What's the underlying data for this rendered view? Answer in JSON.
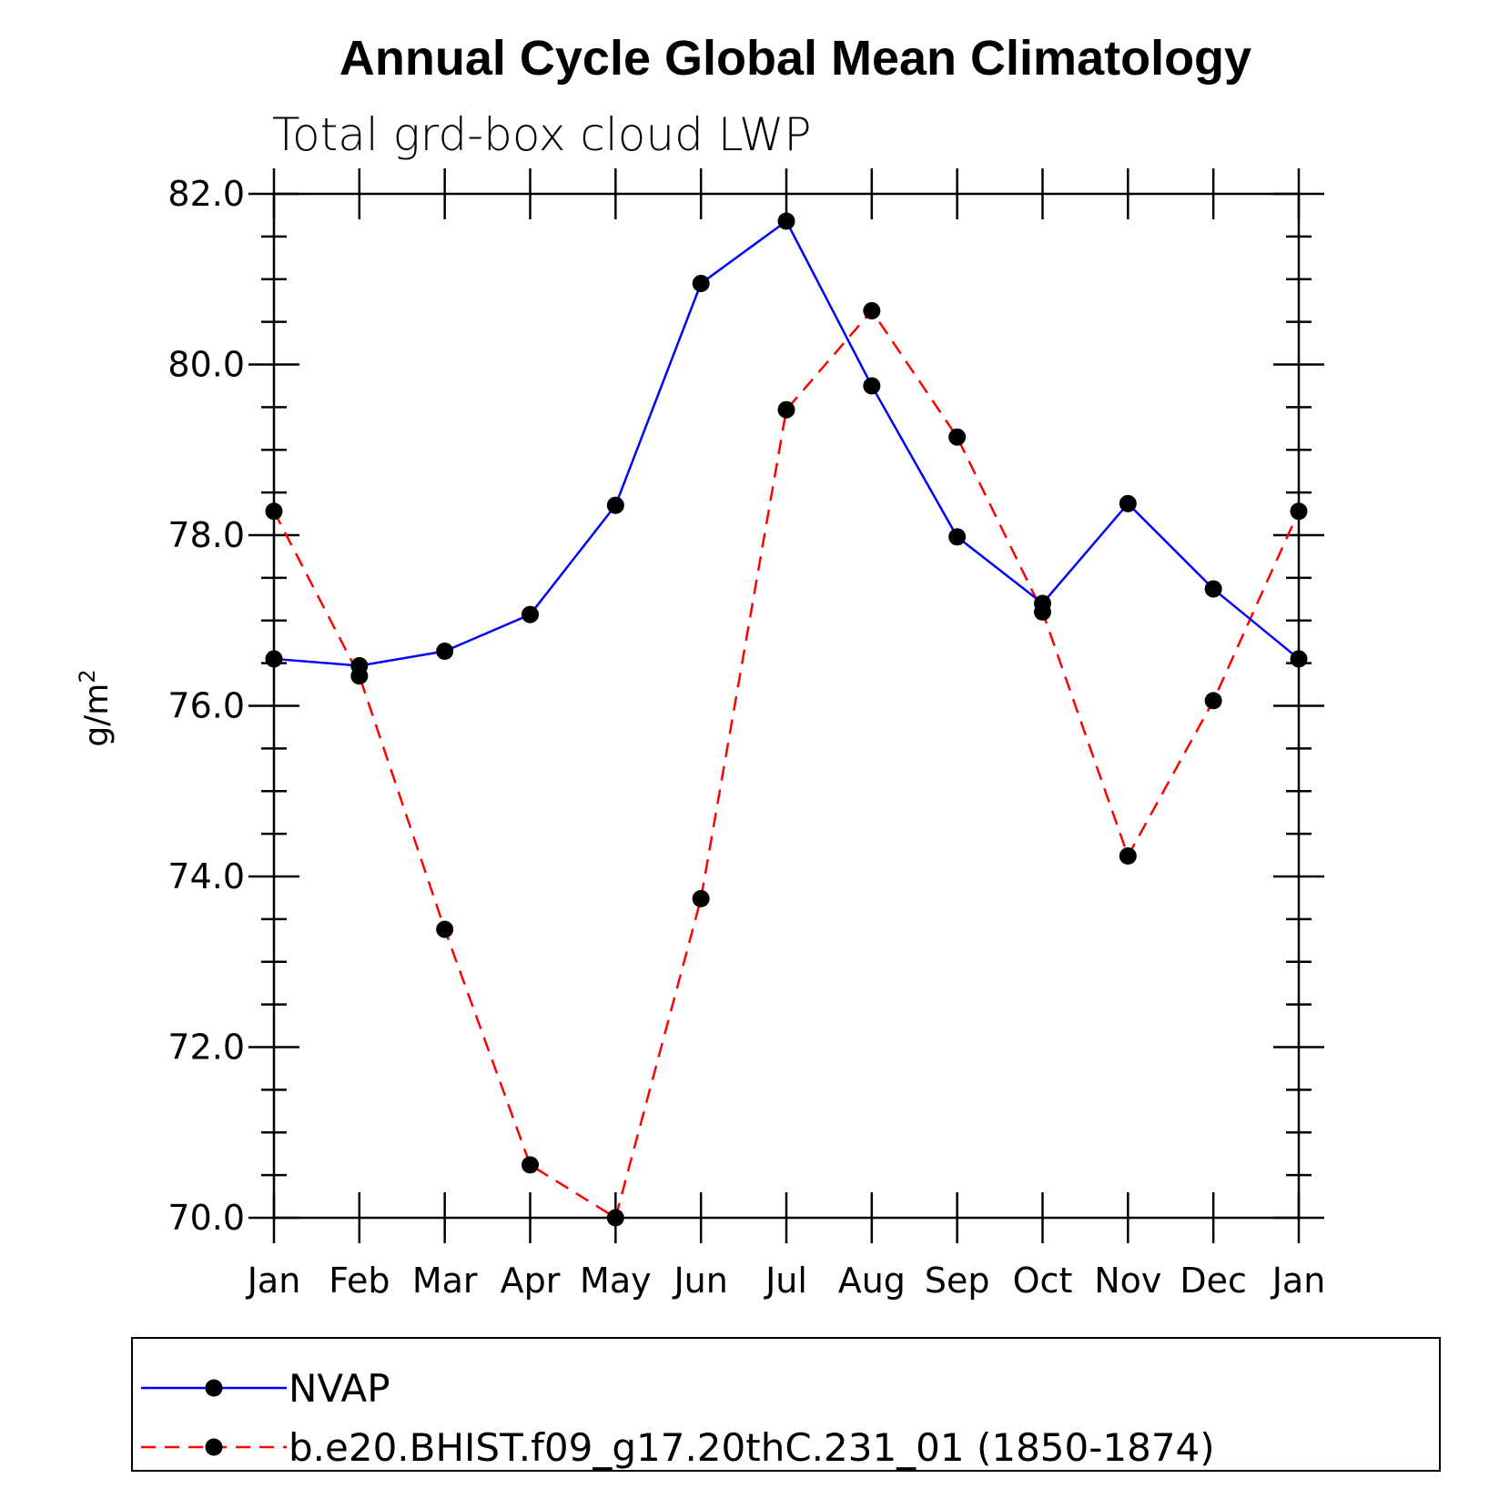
{
  "chart_data": {
    "type": "line",
    "title": "Annual Cycle Global Mean Climatology",
    "subtitle": "Total grd-box cloud LWP",
    "xlabel": "",
    "ylabel": "g/m",
    "ylabel_superscript": "2",
    "ylim": [
      70.0,
      82.0
    ],
    "y_major_ticks": [
      70.0,
      72.0,
      74.0,
      76.0,
      78.0,
      80.0,
      82.0
    ],
    "y_tick_labels": [
      "70.0",
      "72.0",
      "74.0",
      "76.0",
      "78.0",
      "80.0",
      "82.0"
    ],
    "y_minor_step": 0.5,
    "categories": [
      "Jan",
      "Feb",
      "Mar",
      "Apr",
      "May",
      "Jun",
      "Jul",
      "Aug",
      "Sep",
      "Oct",
      "Nov",
      "Dec",
      "Jan"
    ],
    "legend_position": "bottom",
    "series": [
      {
        "name": "NVAP",
        "color": "#0000ff",
        "dash": "solid",
        "marker": "filled-circle",
        "values": [
          76.55,
          76.47,
          76.64,
          77.07,
          78.35,
          80.95,
          81.68,
          79.75,
          77.98,
          77.2,
          78.37,
          77.37,
          76.55
        ]
      },
      {
        "name": "b.e20.BHIST.f09_g17.20thC.231_01 (1850-1874)",
        "color": "#ff0000",
        "dash": "dashed",
        "marker": "filled-circle",
        "values": [
          78.28,
          76.35,
          73.38,
          70.62,
          70.0,
          73.74,
          79.47,
          80.63,
          79.15,
          77.1,
          74.24,
          76.06,
          78.28
        ]
      }
    ]
  }
}
